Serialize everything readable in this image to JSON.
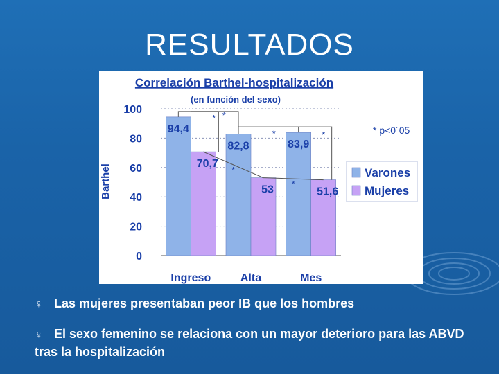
{
  "slide": {
    "title": "RESULTADOS",
    "bullet_symbol": "♀",
    "bullets": [
      "Las mujeres presentaban peor IB que los hombres",
      "El sexo femenino se relaciona con un mayor deterioro para las ABVD tras la hospitalización"
    ]
  },
  "chart_data": {
    "type": "bar",
    "title": "Correlación Barthel-hospitalización",
    "subtitle": "(en función del sexo)",
    "ylabel": "Barthel",
    "xlabel": "",
    "ylim": [
      0,
      100
    ],
    "yticks": [
      0,
      20,
      40,
      60,
      80,
      100
    ],
    "categories": [
      "Ingreso",
      "Alta",
      "Mes"
    ],
    "series": [
      {
        "name": "Varones",
        "values": [
          94.4,
          82.8,
          83.9
        ],
        "labels": [
          "94,4",
          "82,8",
          "83,9"
        ],
        "color": "#8fb3e8"
      },
      {
        "name": "Mujeres",
        "values": [
          70.7,
          53,
          51.6
        ],
        "labels": [
          "70,7",
          "53",
          "51,6"
        ],
        "color": "#c6a2f5"
      }
    ],
    "annotation": "* p<0´05",
    "significance_marker": "*",
    "legend_position": "right",
    "grid": true
  }
}
